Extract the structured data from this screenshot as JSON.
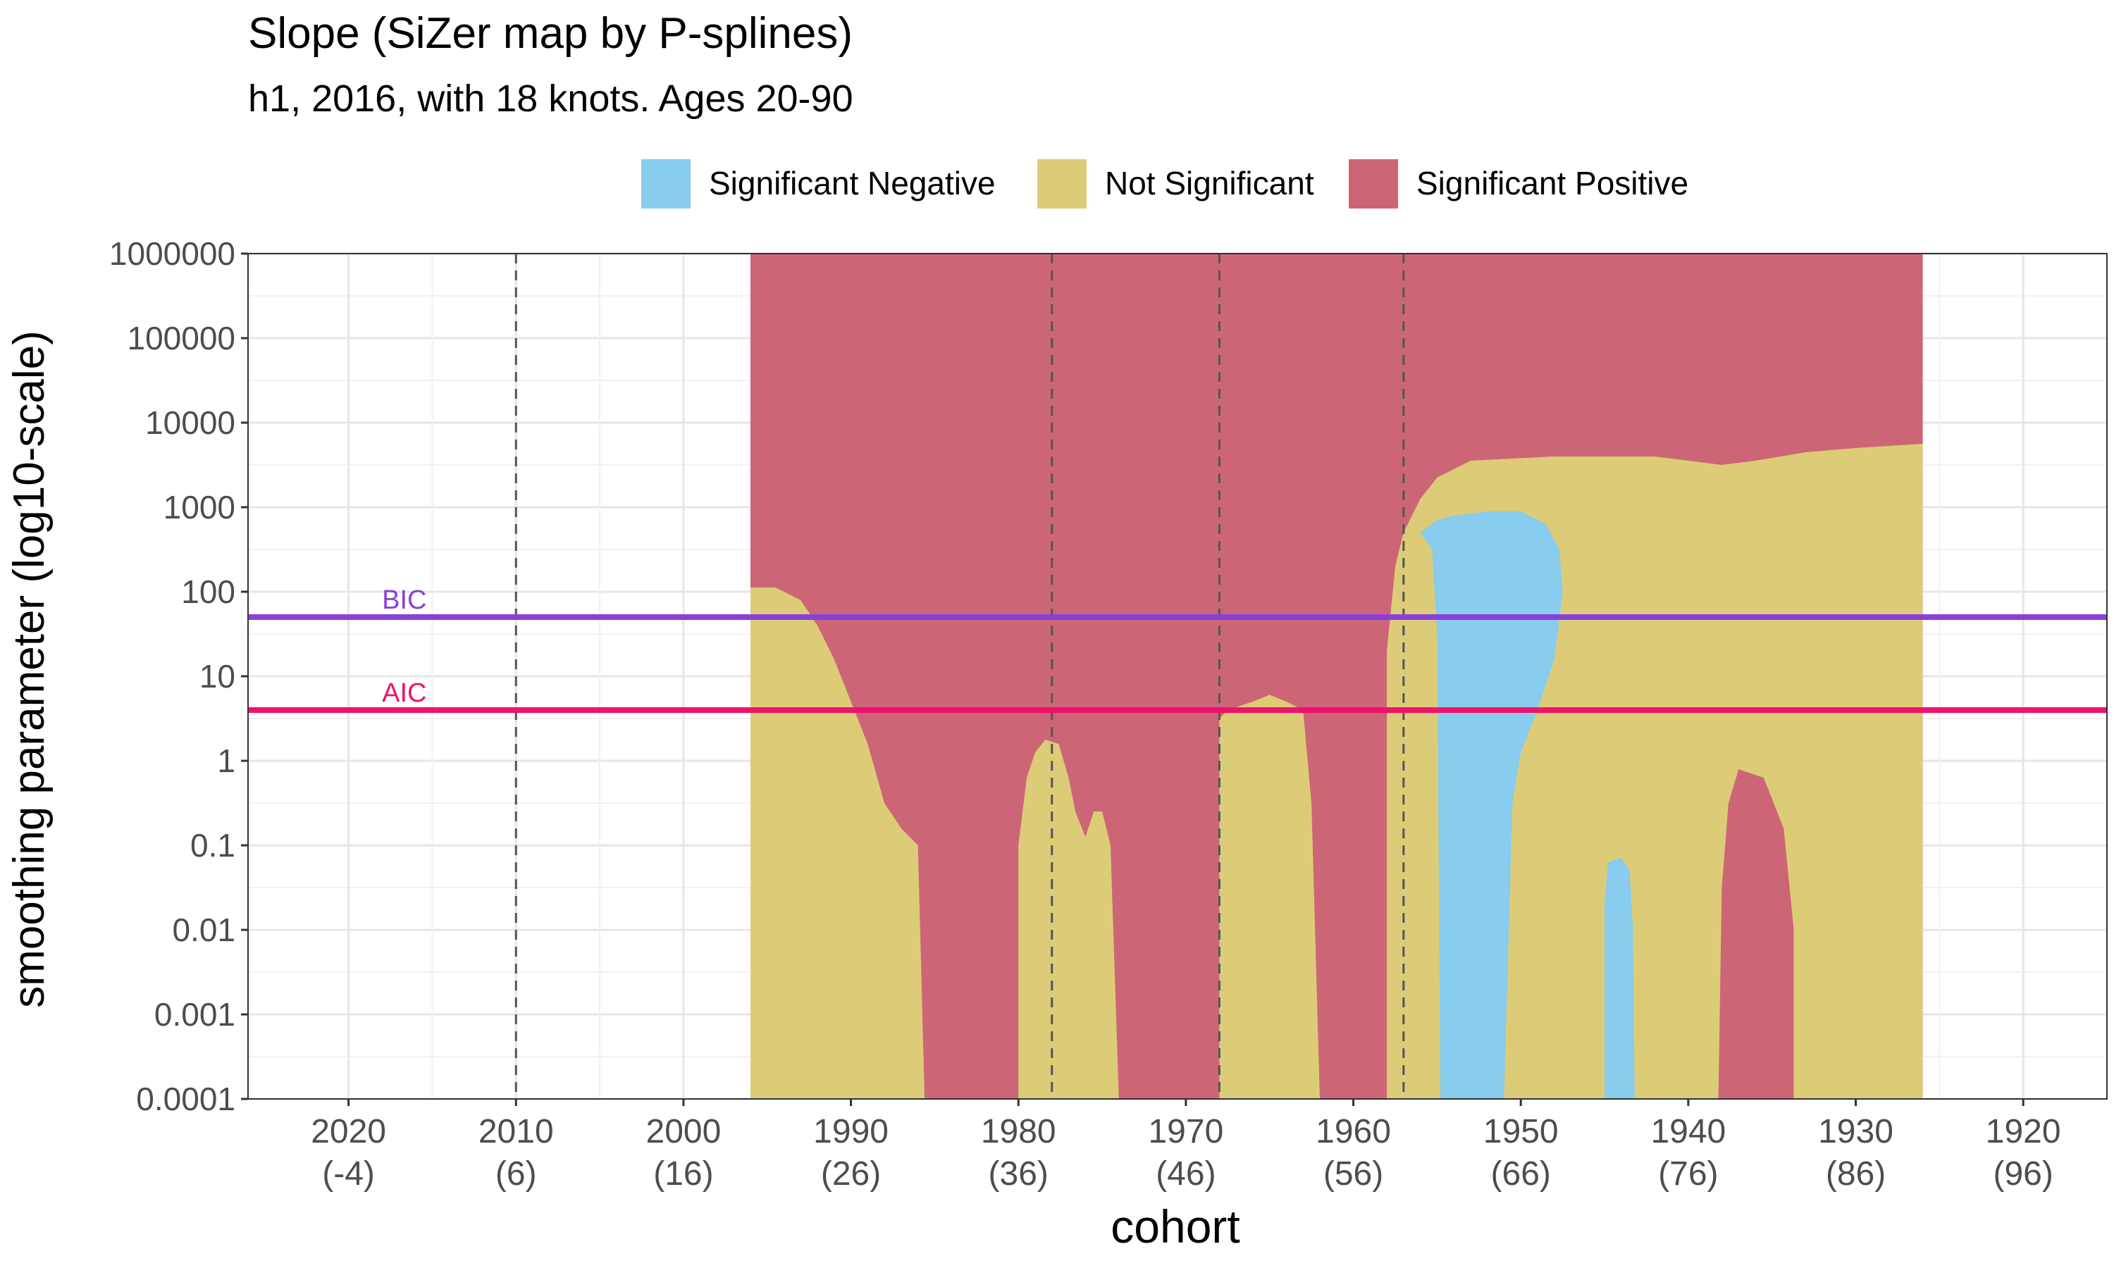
{
  "chart_data": {
    "type": "heatmap",
    "title": "Slope (SiZer map by P-splines)",
    "subtitle": "h1, 2016, with 18 knots. Ages 20-90",
    "xlabel": "cohort",
    "ylabel": "smoothing parameter (log10-scale)",
    "x_reversed": true,
    "xlim": [
      2026,
      1915
    ],
    "ylim_log10": [
      -4,
      6
    ],
    "y_scale": "log10",
    "grid": true,
    "legend_position": "top",
    "legend": [
      {
        "label": "Significant Negative",
        "color": "#88CCEE"
      },
      {
        "label": "Not Significant",
        "color": "#DDCC77"
      },
      {
        "label": "Significant Positive",
        "color": "#CC6677"
      }
    ],
    "x_ticks": [
      {
        "value": 2020,
        "label": "2020",
        "age": "(-4)"
      },
      {
        "value": 2010,
        "label": "2010",
        "age": "(6)"
      },
      {
        "value": 2000,
        "label": "2000",
        "age": "(16)"
      },
      {
        "value": 1990,
        "label": "1990",
        "age": "(26)"
      },
      {
        "value": 1980,
        "label": "1980",
        "age": "(36)"
      },
      {
        "value": 1970,
        "label": "1970",
        "age": "(46)"
      },
      {
        "value": 1960,
        "label": "1960",
        "age": "(56)"
      },
      {
        "value": 1950,
        "label": "1950",
        "age": "(66)"
      },
      {
        "value": 1940,
        "label": "1940",
        "age": "(76)"
      },
      {
        "value": 1930,
        "label": "1930",
        "age": "(86)"
      },
      {
        "value": 1920,
        "label": "1920",
        "age": "(96)"
      }
    ],
    "y_ticks": [
      {
        "log10": 6,
        "label": "1000000"
      },
      {
        "log10": 5,
        "label": "100000"
      },
      {
        "log10": 4,
        "label": "10000"
      },
      {
        "log10": 3,
        "label": "1000"
      },
      {
        "log10": 2,
        "label": "100"
      },
      {
        "log10": 1,
        "label": "10"
      },
      {
        "log10": 0,
        "label": "1"
      },
      {
        "log10": -1,
        "label": "0.1"
      },
      {
        "log10": -2,
        "label": "0.01"
      },
      {
        "log10": -3,
        "label": "0.001"
      },
      {
        "log10": -4,
        "label": "0.0001"
      }
    ],
    "cohort_range": [
      1996,
      1926
    ],
    "background_class": "pos",
    "regions": [
      {
        "class": "ns",
        "points": [
          [
            1996,
            -4
          ],
          [
            1996,
            2.05
          ],
          [
            1994.5,
            2.05
          ],
          [
            1993,
            1.9
          ],
          [
            1992,
            1.6
          ],
          [
            1991,
            1.2
          ],
          [
            1990,
            0.7
          ],
          [
            1989,
            0.2
          ],
          [
            1988,
            -0.5
          ],
          [
            1987,
            -0.8
          ],
          [
            1986,
            -1.0
          ],
          [
            1985.6,
            -4
          ]
        ]
      },
      {
        "class": "ns",
        "points": [
          [
            1980,
            -4
          ],
          [
            1980,
            -1.0
          ],
          [
            1979.5,
            -0.2
          ],
          [
            1979,
            0.1
          ],
          [
            1978.4,
            0.25
          ],
          [
            1977.6,
            0.2
          ],
          [
            1977,
            -0.2
          ],
          [
            1976.6,
            -0.6
          ],
          [
            1976,
            -0.9
          ],
          [
            1975.5,
            -0.6
          ],
          [
            1975,
            -0.6
          ],
          [
            1974.5,
            -1.0
          ],
          [
            1974,
            -4
          ]
        ]
      },
      {
        "class": "ns",
        "points": [
          [
            1968,
            -4
          ],
          [
            1968,
            0.5
          ],
          [
            1967.5,
            0.6
          ],
          [
            1966,
            0.7
          ],
          [
            1965,
            0.78
          ],
          [
            1964,
            0.7
          ],
          [
            1963,
            0.6
          ],
          [
            1962.5,
            -0.5
          ],
          [
            1962,
            -4
          ]
        ]
      },
      {
        "class": "ns",
        "points": [
          [
            1958,
            -4
          ],
          [
            1958,
            1.3
          ],
          [
            1957.5,
            2.3
          ],
          [
            1957,
            2.7
          ],
          [
            1956,
            3.1
          ],
          [
            1955,
            3.35
          ],
          [
            1953,
            3.55
          ],
          [
            1948,
            3.6
          ],
          [
            1946,
            3.6
          ],
          [
            1942,
            3.6
          ],
          [
            1940,
            3.55
          ],
          [
            1938,
            3.5
          ],
          [
            1936,
            3.55
          ],
          [
            1933,
            3.65
          ],
          [
            1930,
            3.7
          ],
          [
            1926,
            3.75
          ],
          [
            1926,
            -4
          ],
          [
            1930.5,
            -4
          ],
          [
            1930.5,
            -1.5
          ],
          [
            1931,
            -0.5
          ],
          [
            1932,
            0.4
          ],
          [
            1934,
            0.9
          ],
          [
            1935,
            1.2
          ],
          [
            1933,
            1.4
          ],
          [
            1931,
            1.5
          ],
          [
            1929,
            1.4
          ],
          [
            1927,
            1.25
          ],
          [
            1926.5,
            1.1
          ],
          [
            1926.5,
            3.1
          ],
          [
            1929,
            3.2
          ],
          [
            1931,
            3.3
          ],
          [
            1933,
            3.15
          ],
          [
            1935,
            3.0
          ],
          [
            1937,
            3.0
          ],
          [
            1939,
            3.0
          ],
          [
            1941,
            2.9
          ],
          [
            1942,
            2.6
          ],
          [
            1942.5,
            2.2
          ],
          [
            1942,
            1.5
          ],
          [
            1941,
            1.0
          ],
          [
            1940.5,
            0.5
          ],
          [
            1940,
            -0.5
          ],
          [
            1939,
            -1.0
          ],
          [
            1938.5,
            -1.5
          ],
          [
            1938.2,
            -4
          ],
          [
            1933.7,
            -4
          ],
          [
            1933.7,
            -2.0
          ],
          [
            1934.3,
            -0.8
          ],
          [
            1935.5,
            -0.2
          ],
          [
            1937,
            -0.1
          ],
          [
            1937.6,
            -0.5
          ],
          [
            1938,
            -1.5
          ],
          [
            1938.2,
            -4
          ],
          [
            1941.2,
            -4
          ],
          [
            1941.2,
            -2.0
          ],
          [
            1941.7,
            -0.5
          ],
          [
            1942.5,
            0.4
          ],
          [
            1943.5,
            1.0
          ],
          [
            1945,
            1.5
          ],
          [
            1946,
            1.9
          ],
          [
            1947,
            2.5
          ],
          [
            1947.2,
            2.6
          ],
          [
            1946.5,
            3.0
          ],
          [
            1945,
            3.15
          ],
          [
            1943,
            3.2
          ],
          [
            1941,
            3.3
          ],
          [
            1940,
            3.35
          ],
          [
            1940,
            3.55
          ],
          [
            1938,
            3.5
          ],
          [
            1936,
            3.55
          ],
          [
            1930,
            3.7
          ],
          [
            1926,
            3.75
          ],
          [
            1926,
            -4
          ]
        ]
      },
      {
        "class": "neg",
        "points": [
          [
            1954.8,
            -4
          ],
          [
            1955,
            1.5
          ],
          [
            1955.3,
            2.5
          ],
          [
            1956,
            2.7
          ],
          [
            1955,
            2.85
          ],
          [
            1954,
            2.9
          ],
          [
            1952,
            2.95
          ],
          [
            1950,
            2.95
          ],
          [
            1948.5,
            2.8
          ],
          [
            1947.7,
            2.5
          ],
          [
            1947.5,
            2.0
          ],
          [
            1948,
            1.2
          ],
          [
            1949,
            0.6
          ],
          [
            1950,
            0.1
          ],
          [
            1950.5,
            -0.5
          ],
          [
            1951,
            -4
          ]
        ]
      },
      {
        "class": "neg",
        "points": [
          [
            1945,
            -4
          ],
          [
            1945,
            -1.7
          ],
          [
            1944.8,
            -1.2
          ],
          [
            1944,
            -1.15
          ],
          [
            1943.5,
            -1.3
          ],
          [
            1943.3,
            -2.0
          ],
          [
            1943.2,
            -4
          ]
        ]
      }
    ],
    "reference_lines": [
      {
        "name": "BIC",
        "type": "horizontal",
        "log10": 1.7,
        "color": "#8A3FD9"
      },
      {
        "name": "AIC",
        "type": "horizontal",
        "log10": 0.6,
        "color": "#F0126D"
      }
    ],
    "vline_values": [
      2010,
      1978,
      1968,
      1957
    ]
  }
}
